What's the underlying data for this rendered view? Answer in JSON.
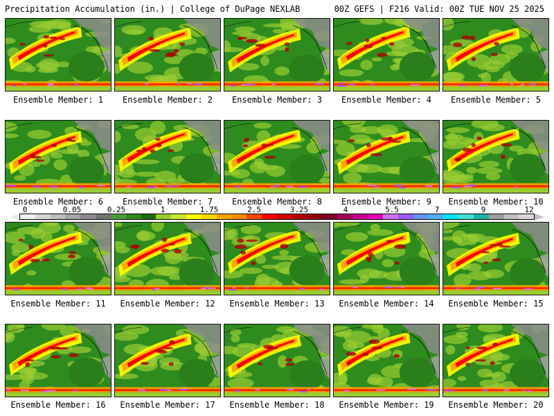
{
  "header": {
    "title_left": "Precipitation Accumulation (in.) | College of DuPage NEXLAB",
    "title_right": "00Z GEFS | F216 Valid: 00Z TUE NOV 25 2025"
  },
  "colorbar": {
    "ticks": [
      "0",
      "0.05",
      "0.25",
      "1",
      "1.75",
      "2.5",
      "3.25",
      "4",
      "5.5",
      "7",
      "9",
      "12"
    ],
    "colors": [
      "#f2f2f2",
      "#d9d9d9",
      "#bfbfbf",
      "#a6a6a6",
      "#8c8c8c",
      "#737373",
      "#4e9a3a",
      "#2e8b1e",
      "#1d6b12",
      "#9acd32",
      "#c8e632",
      "#ffff00",
      "#ffd700",
      "#ffa500",
      "#ff8c00",
      "#ff4500",
      "#ff0000",
      "#d00000",
      "#b00000",
      "#900000",
      "#7a0026",
      "#a0005a",
      "#c8008c",
      "#e000b4",
      "#d070f0",
      "#9b59ff",
      "#6495ed",
      "#4fb0ff",
      "#00e5ff",
      "#40e0d0",
      "#20b2aa",
      "#9e9e9e",
      "#c0c0c0",
      "#d8d8d8"
    ]
  },
  "members": [
    {
      "label": "Ensemble Member: 1"
    },
    {
      "label": "Ensemble Member: 2"
    },
    {
      "label": "Ensemble Member: 3"
    },
    {
      "label": "Ensemble Member: 4"
    },
    {
      "label": "Ensemble Member: 5"
    },
    {
      "label": "Ensemble Member: 6"
    },
    {
      "label": "Ensemble Member: 7"
    },
    {
      "label": "Ensemble Member: 8"
    },
    {
      "label": "Ensemble Member: 9"
    },
    {
      "label": "Ensemble Member: 10"
    },
    {
      "label": "Ensemble Member: 11"
    },
    {
      "label": "Ensemble Member: 12"
    },
    {
      "label": "Ensemble Member: 13"
    },
    {
      "label": "Ensemble Member: 14"
    },
    {
      "label": "Ensemble Member: 15"
    },
    {
      "label": "Ensemble Member: 16"
    },
    {
      "label": "Ensemble Member: 17"
    },
    {
      "label": "Ensemble Member: 18"
    },
    {
      "label": "Ensemble Member: 19"
    },
    {
      "label": "Ensemble Member: 20"
    }
  ]
}
